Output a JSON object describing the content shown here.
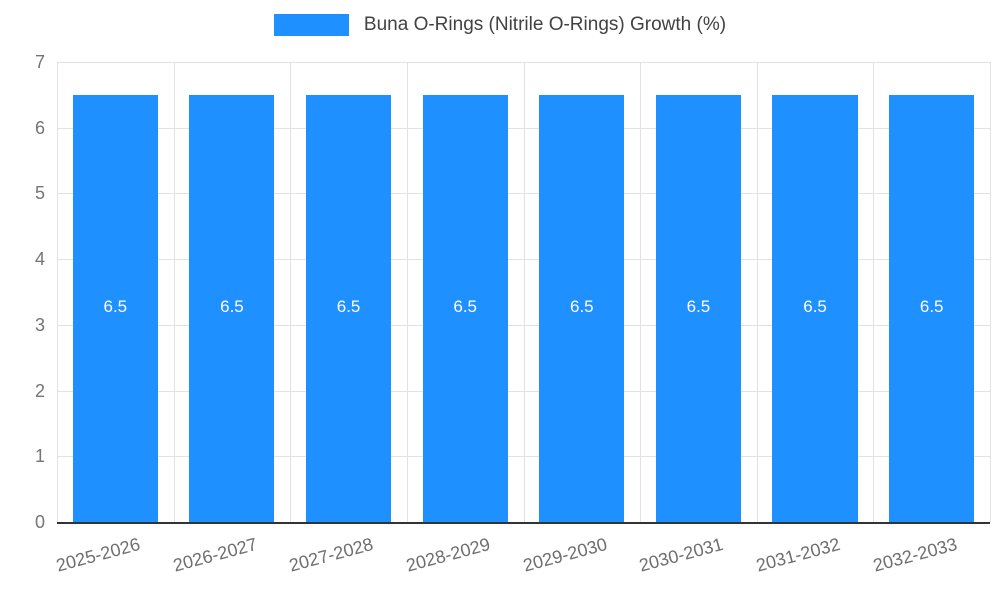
{
  "legend": {
    "label": "Buna O-Rings (Nitrile O-Rings) Growth (%)"
  },
  "colors": {
    "bar": "#1e90ff",
    "grid": "#e2e2e2",
    "axis": "#333333",
    "y_tick_text": "#757575",
    "x_tick_text": "#6e6e6e",
    "legend_text": "#424242",
    "bar_label_text": "#ffffff"
  },
  "chart_data": {
    "type": "bar",
    "title": "Buna O-Rings (Nitrile O-Rings) Growth (%)",
    "categories": [
      "2025-2026",
      "2026-2027",
      "2027-2028",
      "2028-2029",
      "2029-2030",
      "2030-2031",
      "2031-2032",
      "2032-2033"
    ],
    "series": [
      {
        "name": "Buna O-Rings (Nitrile O-Rings) Growth (%)",
        "values": [
          6.5,
          6.5,
          6.5,
          6.5,
          6.5,
          6.5,
          6.5,
          6.5
        ]
      }
    ],
    "bar_labels": [
      "6.5",
      "6.5",
      "6.5",
      "6.5",
      "6.5",
      "6.5",
      "6.5",
      "6.5"
    ],
    "xlabel": "",
    "ylabel": "",
    "ylim": [
      0,
      7
    ],
    "yticks": [
      0,
      1,
      2,
      3,
      4,
      5,
      6,
      7
    ],
    "grid": true,
    "legend_position": "top",
    "x_label_rotation_deg": -15
  }
}
